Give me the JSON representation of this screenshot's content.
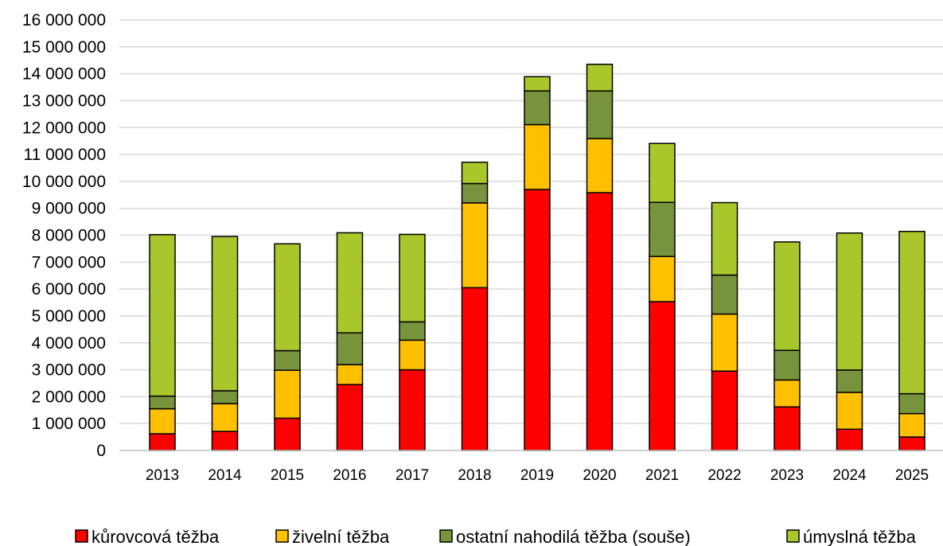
{
  "chart_data": {
    "type": "bar",
    "stacked": true,
    "categories": [
      "2013",
      "2014",
      "2015",
      "2016",
      "2017",
      "2018",
      "2019",
      "2020",
      "2021",
      "2022",
      "2023",
      "2024",
      "2025"
    ],
    "series": [
      {
        "name": "kůrovcová těžba",
        "color": "#ff0000",
        "values": [
          620000,
          710000,
          1200000,
          2450000,
          3000000,
          6050000,
          9700000,
          9580000,
          5530000,
          2950000,
          1620000,
          790000,
          500000
        ]
      },
      {
        "name": "živelní těžba",
        "color": "#ffc000",
        "values": [
          930000,
          1030000,
          1780000,
          740000,
          1100000,
          3150000,
          2410000,
          2010000,
          1680000,
          2120000,
          1000000,
          1370000,
          870000
        ]
      },
      {
        "name": "ostatní nahodilá těžba (souše)",
        "color": "#77933c",
        "values": [
          470000,
          480000,
          730000,
          1180000,
          680000,
          720000,
          1250000,
          1770000,
          2010000,
          1450000,
          1100000,
          830000,
          740000
        ]
      },
      {
        "name": "úmyslná těžba",
        "color": "#a9c72b",
        "values": [
          6000000,
          5730000,
          3970000,
          3720000,
          3250000,
          790000,
          530000,
          990000,
          2190000,
          2690000,
          4030000,
          5090000,
          6030000
        ]
      }
    ],
    "ylim": [
      0,
      16000000
    ],
    "yticks": [
      "0",
      "1 000 000",
      "2 000 000",
      "3 000 000",
      "4 000 000",
      "5 000 000",
      "6 000 000",
      "7 000 000",
      "8 000 000",
      "9 000 000",
      "10 000 000",
      "11 000 000",
      "12 000 000",
      "13 000 000",
      "14 000 000",
      "15 000 000",
      "16 000 000"
    ],
    "grid": true,
    "legend_position": "bottom",
    "title": "",
    "xlabel": "",
    "ylabel": ""
  }
}
